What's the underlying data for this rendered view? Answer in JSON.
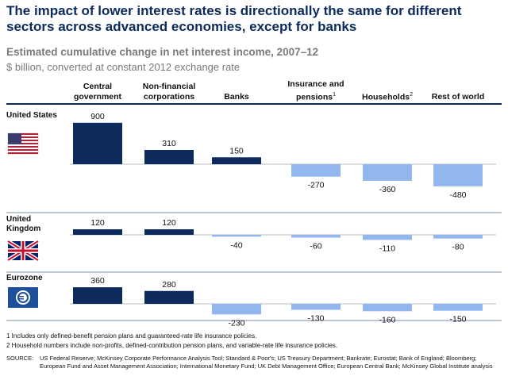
{
  "header": {
    "title": "The impact of lower interest rates is directionally the same for different sectors across advanced economies, except for banks",
    "subtitle": "Estimated cumulative change in net interest income, 2007–12",
    "unit": "$ billion, converted at constant 2012 exchange rate"
  },
  "columns": [
    {
      "label": "Central government"
    },
    {
      "label": "Non-financial corporations"
    },
    {
      "label": "Banks"
    },
    {
      "label": "Insurance and pensions",
      "note": "1"
    },
    {
      "label": "Households",
      "note": "2"
    },
    {
      "label": "Rest of world"
    }
  ],
  "bar_colors": {
    "positive": "#0c2a5c",
    "negative": "#92b6ee"
  },
  "chart_data": [
    {
      "type": "bar",
      "title": "United States",
      "values": [
        900,
        310,
        150,
        -270,
        -360,
        -480
      ]
    },
    {
      "type": "bar",
      "title": "United Kingdom",
      "values": [
        120,
        120,
        -40,
        -60,
        -110,
        -80
      ]
    },
    {
      "type": "bar",
      "title": "Eurozone",
      "values": [
        360,
        280,
        -230,
        -130,
        -160,
        -150
      ]
    }
  ],
  "footnotes": [
    "1 Includes only defined-benefit pension plans and guaranteed-rate life insurance policies.",
    "2 Household numbers include non-profits, defined-contribution pension plans, and variable-rate life insurance policies."
  ],
  "source": {
    "label": "SOURCE:",
    "text": "US Federal Reserve; McKinsey Corporate Performance Analysis Tool; Standard & Poor's; US Treasury Department; Bankrate; Eurostat; Bank of England; Bloomberg; European Fund and Asset Management Association; International Monetary Fund; UK Debt Management Office; European Central Bank; McKinsey Global Institute analysis"
  }
}
